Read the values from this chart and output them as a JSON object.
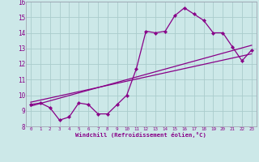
{
  "xlabel": "Windchill (Refroidissement éolien,°C)",
  "bg_color": "#cce8e8",
  "line_color": "#880088",
  "grid_color": "#aacccc",
  "text_color": "#880088",
  "spine_color": "#9999aa",
  "xlim": [
    -0.5,
    23.5
  ],
  "ylim": [
    8,
    16
  ],
  "xticks": [
    0,
    1,
    2,
    3,
    4,
    5,
    6,
    7,
    8,
    9,
    10,
    11,
    12,
    13,
    14,
    15,
    16,
    17,
    18,
    19,
    20,
    21,
    22,
    23
  ],
  "yticks": [
    8,
    9,
    10,
    11,
    12,
    13,
    14,
    15,
    16
  ],
  "scatter_x": [
    0,
    1,
    2,
    3,
    4,
    5,
    6,
    7,
    8,
    9,
    10,
    11,
    12,
    13,
    14,
    15,
    16,
    17,
    18,
    19,
    20,
    21,
    22,
    23
  ],
  "scatter_y": [
    9.4,
    9.5,
    9.2,
    8.4,
    8.6,
    9.5,
    9.4,
    8.8,
    8.8,
    9.4,
    10.0,
    11.7,
    14.1,
    14.0,
    14.1,
    15.1,
    15.6,
    15.2,
    14.8,
    14.0,
    14.0,
    13.1,
    12.2,
    12.9
  ],
  "line1_x": [
    0,
    23
  ],
  "line1_y": [
    9.3,
    13.2
  ],
  "line2_x": [
    0,
    23
  ],
  "line2_y": [
    9.55,
    12.65
  ]
}
